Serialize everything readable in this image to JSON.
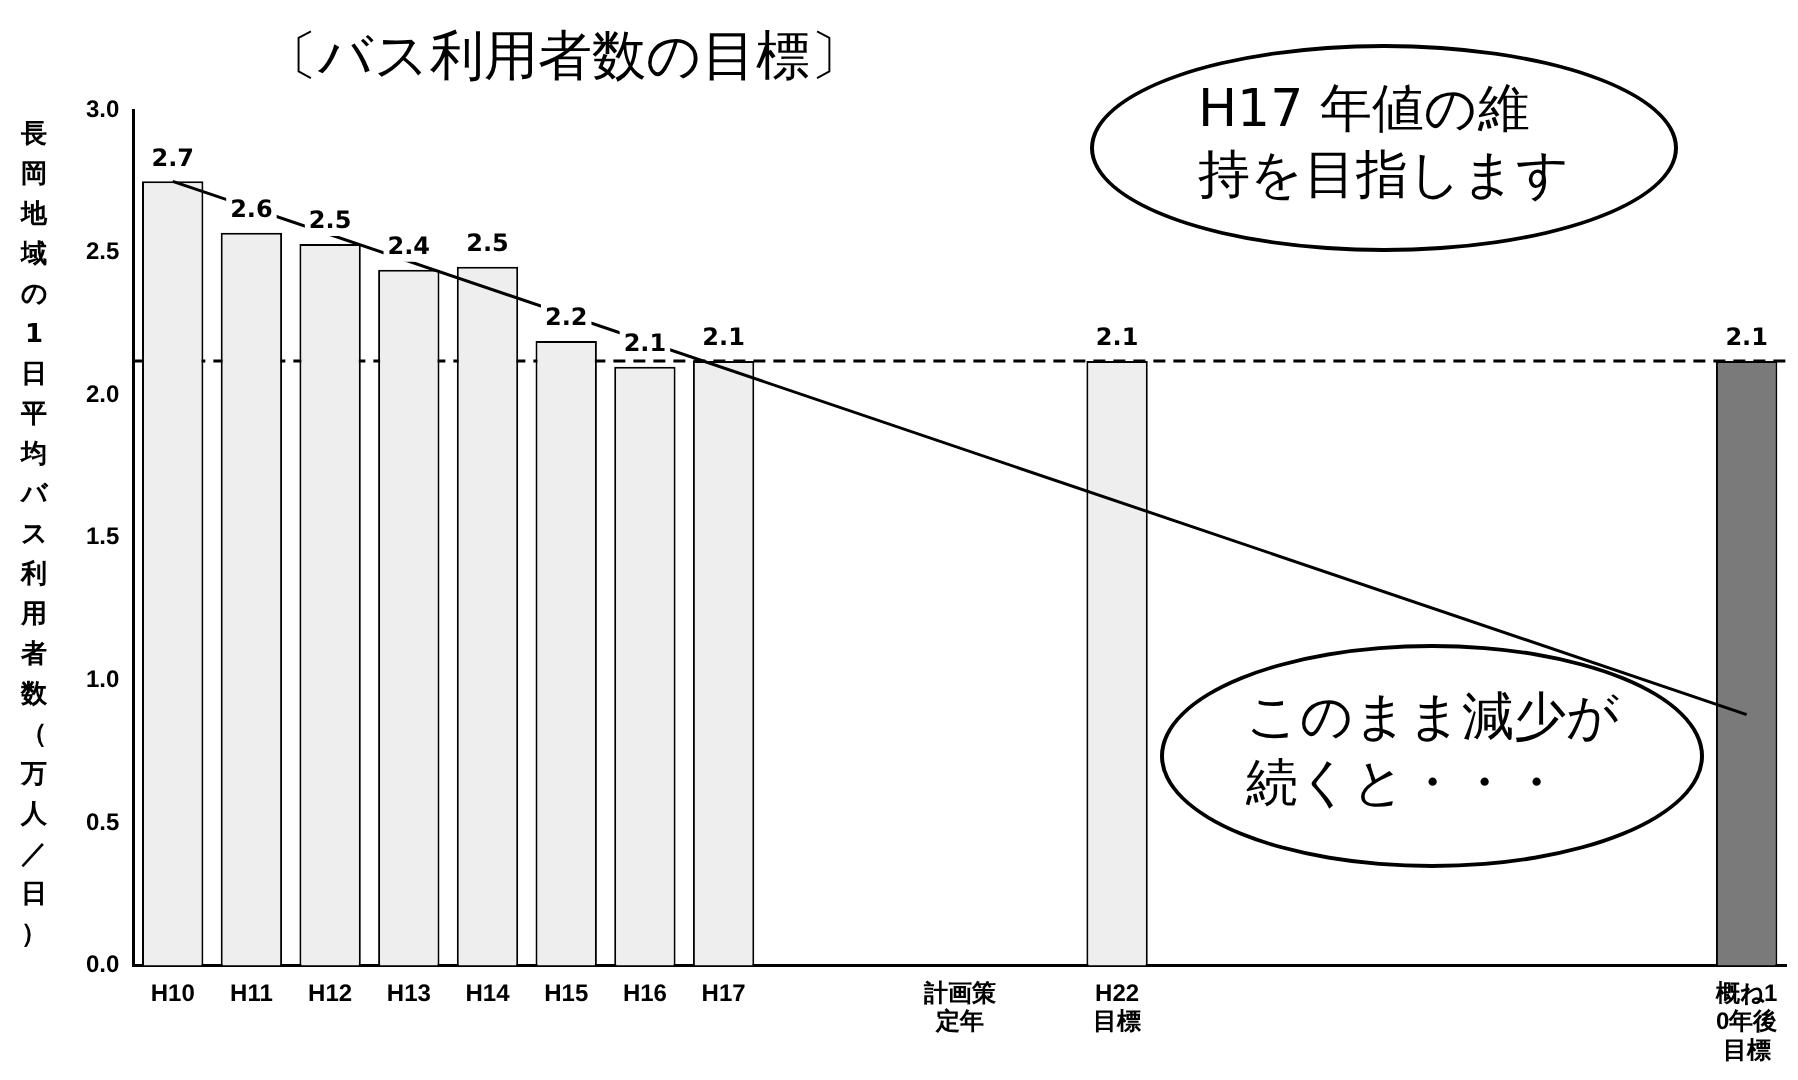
{
  "chart_data": {
    "type": "bar",
    "title": "〔バス利用者数の目標〕",
    "ylabel": "長岡地域の1日平均バス利用者数（万人／日）",
    "categories": [
      "H10",
      "H11",
      "H12",
      "H13",
      "H14",
      "H15",
      "H16",
      "H17",
      null,
      null,
      "計画策定年",
      null,
      "H22 目標",
      null,
      null,
      null,
      null,
      null,
      null,
      null,
      "概ね10年後目標"
    ],
    "series": [
      {
        "colors": [
          "#eeeeee",
          "#eeeeee",
          "#eeeeee",
          "#eeeeee",
          "#eeeeee",
          "#eeeeee",
          "#eeeeee",
          "#eeeeee",
          null,
          null,
          null,
          null,
          "#eeeeee",
          null,
          null,
          null,
          null,
          null,
          null,
          null,
          "#7a7a7a"
        ],
        "values": [
          2.75,
          2.57,
          2.53,
          2.44,
          2.45,
          2.19,
          2.1,
          2.12,
          null,
          null,
          null,
          null,
          2.12,
          null,
          null,
          null,
          null,
          null,
          null,
          null,
          2.12
        ],
        "value_labels": [
          "2.7",
          "2.6",
          "2.5",
          "2.4",
          "2.5",
          "2.2",
          "2.1",
          "2.1",
          null,
          null,
          null,
          null,
          "2.1",
          null,
          null,
          null,
          null,
          null,
          null,
          null,
          "2.1"
        ]
      },
      {
        "type": "line",
        "color": "#000000",
        "x": [
          "H10",
          "概ね10年後目標"
        ],
        "values": [
          2.75,
          0.88
        ]
      }
    ],
    "ylim": [
      0,
      3
    ],
    "yticks": [
      {
        "value": 0,
        "label": "0.0"
      },
      {
        "value": 0.5,
        "label": "0.5"
      },
      {
        "value": 1,
        "label": "1.0"
      },
      {
        "value": 1.5,
        "label": "1.5"
      },
      {
        "value": 2,
        "label": "2.0"
      },
      {
        "value": 2.5,
        "label": "2.5"
      },
      {
        "value": 3,
        "label": "3.0"
      }
    ],
    "ref_lines": [
      {
        "axis": "y",
        "value": 2.12,
        "line_style": "dashed",
        "color": "#000000"
      }
    ],
    "annotations": [
      "H17 年値の維持を目指します",
      "このまま減少が続くと・・・"
    ],
    "grid": false,
    "legend": false
  }
}
